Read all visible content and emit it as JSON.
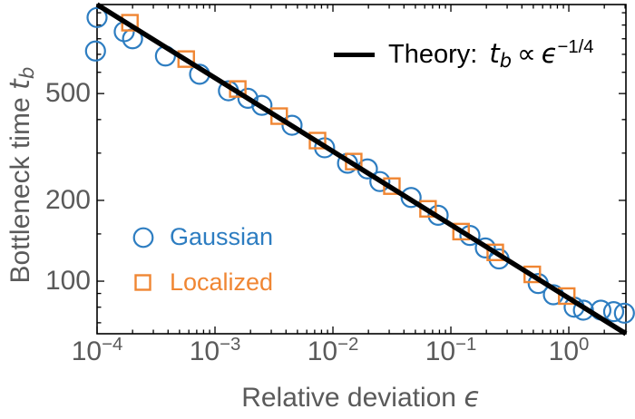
{
  "figure": {
    "background": "#ffffff",
    "frame_color": "#000000",
    "tick_label_color": "#5a5a5a"
  },
  "axes": {
    "x": {
      "title": {
        "text": "Relative deviation",
        "symbol": "ϵ"
      },
      "scale": "log",
      "min": 0.0001,
      "max": 3.05,
      "major_ticks": [
        {
          "value": 0.0001,
          "base": "10",
          "exp": "−4"
        },
        {
          "value": 0.001,
          "base": "10",
          "exp": "−3"
        },
        {
          "value": 0.01,
          "base": "10",
          "exp": "−2"
        },
        {
          "value": 0.1,
          "base": "10",
          "exp": "−1"
        },
        {
          "value": 1,
          "base": "10",
          "exp": "0"
        }
      ],
      "minor_ticks": [
        0.0002,
        0.0003,
        0.0004,
        0.0005,
        0.0006,
        0.0007,
        0.0008,
        0.0009,
        0.002,
        0.003,
        0.004,
        0.005,
        0.006,
        0.007,
        0.008,
        0.009,
        0.02,
        0.03,
        0.04,
        0.05,
        0.06,
        0.07,
        0.08,
        0.09,
        0.2,
        0.3,
        0.4,
        0.5,
        0.6,
        0.7,
        0.8,
        0.9,
        2,
        3
      ]
    },
    "y": {
      "title": {
        "text": "Bottleneck time",
        "symbol": "t",
        "symbol_sub": "b"
      },
      "scale": "log",
      "min": 63.7,
      "max": 1073,
      "major_ticks": [
        {
          "value": 100,
          "label": "100"
        },
        {
          "value": 200,
          "label": "200"
        },
        {
          "value": 500,
          "label": "500"
        }
      ],
      "minor_ticks": [
        70,
        80,
        90,
        150,
        300,
        400,
        600,
        700,
        800,
        900,
        1000
      ]
    }
  },
  "legend": {
    "theory": {
      "prefix": "Theory:",
      "var": "t",
      "var_sub": "b",
      "relation": "∝",
      "symbol": "ϵ",
      "exponent": "−1/4",
      "line_color": "#000000"
    },
    "series": [
      {
        "label": "Gaussian",
        "marker": "circle",
        "color": "#2d7dc1"
      },
      {
        "label": "Localized",
        "marker": "square",
        "color": "#f08633"
      }
    ]
  },
  "chart_data": {
    "type": "scatter",
    "x_scale": "log",
    "y_scale": "log",
    "xlim": [
      0.0001,
      3.05
    ],
    "ylim": [
      63.7,
      1073
    ],
    "xlabel": "Relative deviation ϵ",
    "ylabel": "Bottleneck time t_b",
    "legend_position": "theory top-right, series lower-left inside frame",
    "grid": false,
    "series": [
      {
        "name": "Gaussian",
        "type": "scatter",
        "marker": "circle",
        "color": "#2d7dc1",
        "points": [
          [
            9.7e-05,
            720
          ],
          [
            0.0001,
            960
          ],
          [
            0.00017,
            850
          ],
          [
            0.0002,
            800
          ],
          [
            0.00038,
            690
          ],
          [
            0.00074,
            590
          ],
          [
            0.0013,
            512
          ],
          [
            0.0019,
            480
          ],
          [
            0.0025,
            452
          ],
          [
            0.0045,
            381
          ],
          [
            0.0085,
            314
          ],
          [
            0.0133,
            275
          ],
          [
            0.0196,
            262
          ],
          [
            0.025,
            235
          ],
          [
            0.046,
            205
          ],
          [
            0.078,
            176
          ],
          [
            0.145,
            148
          ],
          [
            0.196,
            133
          ],
          [
            0.256,
            121
          ],
          [
            0.55,
            98
          ],
          [
            0.74,
            89
          ],
          [
            1.11,
            80
          ],
          [
            1.33,
            78
          ],
          [
            1.87,
            78
          ],
          [
            2.4,
            77
          ],
          [
            2.96,
            76
          ]
        ]
      },
      {
        "name": "Localized",
        "type": "scatter",
        "marker": "square",
        "color": "#f08633",
        "points": [
          [
            0.00019,
            918
          ],
          [
            0.00057,
            672
          ],
          [
            0.00156,
            520
          ],
          [
            0.0035,
            412
          ],
          [
            0.0074,
            334
          ],
          [
            0.015,
            279
          ],
          [
            0.0316,
            226
          ],
          [
            0.064,
            186
          ],
          [
            0.122,
            153
          ],
          [
            0.238,
            128
          ],
          [
            0.49,
            106
          ],
          [
            0.96,
            88
          ]
        ]
      },
      {
        "name": "Theory",
        "type": "line",
        "color": "#000000",
        "width": 5.5,
        "points": [
          [
            0.0001,
            1073
          ],
          [
            3.05,
            63.7
          ]
        ]
      }
    ]
  }
}
